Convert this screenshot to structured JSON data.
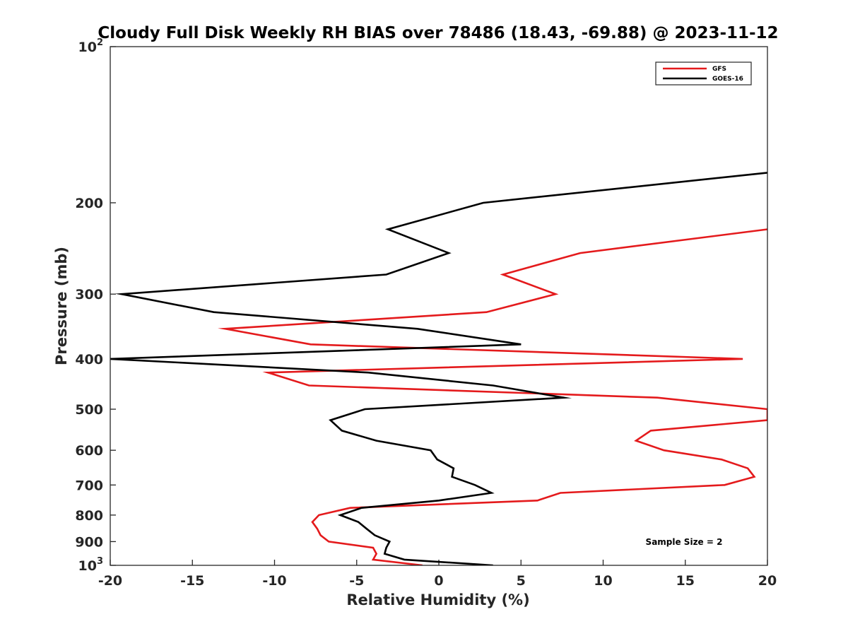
{
  "chart_data": {
    "type": "line",
    "title": "Cloudy Full Disk Weekly RH BIAS over 78486 (18.43, -69.88) @ 2023-11-12",
    "xlabel": "Relative Humidity (%)",
    "ylabel": "Pressure (mb)",
    "xlim": [
      -20,
      20
    ],
    "ylim": [
      100,
      1000
    ],
    "yscale": "log",
    "y_reversed": true,
    "x_ticks": [
      "-20",
      "-15",
      "-10",
      "-5",
      "0",
      "5",
      "10",
      "15",
      "20"
    ],
    "y_ticks": [
      {
        "base": "10",
        "exp": "2"
      },
      {
        "label": "200"
      },
      {
        "label": "300"
      },
      {
        "label": "400"
      },
      {
        "label": "500"
      },
      {
        "label": "600"
      },
      {
        "label": "700"
      },
      {
        "label": "800"
      },
      {
        "label": "900"
      },
      {
        "base": "10",
        "exp": "3"
      }
    ],
    "legend": {
      "position": "top-right"
    },
    "annotation": "Sample Size = 2",
    "series": [
      {
        "name": "GFS",
        "color": "#e41a1c",
        "points": [
          [
            -1.0,
            1000
          ],
          [
            -4.0,
            975
          ],
          [
            -3.8,
            950
          ],
          [
            -4.0,
            925
          ],
          [
            -6.7,
            900
          ],
          [
            -7.2,
            875
          ],
          [
            -7.4,
            850
          ],
          [
            -7.7,
            825
          ],
          [
            -7.3,
            800
          ],
          [
            -5.4,
            775
          ],
          [
            6.0,
            750
          ],
          [
            7.4,
            725
          ],
          [
            17.4,
            700
          ],
          [
            19.2,
            675
          ],
          [
            18.8,
            650
          ],
          [
            17.2,
            625
          ],
          [
            13.7,
            600
          ],
          [
            12.0,
            575
          ],
          [
            12.9,
            550
          ],
          [
            20.0,
            525
          ],
          [
            20.0,
            500
          ],
          [
            13.3,
            475
          ],
          [
            -7.9,
            450
          ],
          [
            -10.4,
            425
          ],
          [
            18.5,
            400
          ],
          [
            -7.8,
            375
          ],
          [
            -13.0,
            350
          ],
          [
            2.9,
            325
          ],
          [
            7.1,
            300
          ],
          [
            3.9,
            275
          ],
          [
            8.6,
            250
          ],
          [
            20.0,
            225
          ]
        ]
      },
      {
        "name": "GOES-16",
        "color": "#000000",
        "points": [
          [
            3.3,
            1000
          ],
          [
            -2.1,
            975
          ],
          [
            -3.3,
            950
          ],
          [
            -3.2,
            925
          ],
          [
            -3.0,
            900
          ],
          [
            -3.9,
            875
          ],
          [
            -4.4,
            850
          ],
          [
            -4.9,
            825
          ],
          [
            -6.0,
            800
          ],
          [
            -4.7,
            775
          ],
          [
            0.0,
            750
          ],
          [
            3.2,
            725
          ],
          [
            2.2,
            700
          ],
          [
            0.8,
            675
          ],
          [
            0.9,
            650
          ],
          [
            -0.1,
            625
          ],
          [
            -0.5,
            600
          ],
          [
            -3.8,
            575
          ],
          [
            -5.9,
            550
          ],
          [
            -6.6,
            525
          ],
          [
            -4.5,
            500
          ],
          [
            7.6,
            475
          ],
          [
            3.3,
            450
          ],
          [
            -4.3,
            425
          ],
          [
            -20.0,
            400
          ],
          [
            5.0,
            375
          ],
          [
            -1.3,
            350
          ],
          [
            -13.7,
            325
          ],
          [
            -19.3,
            300
          ],
          [
            -3.2,
            275
          ],
          [
            0.6,
            250
          ],
          [
            -3.1,
            225
          ],
          [
            2.7,
            200
          ],
          [
            20.0,
            175
          ]
        ]
      }
    ]
  }
}
